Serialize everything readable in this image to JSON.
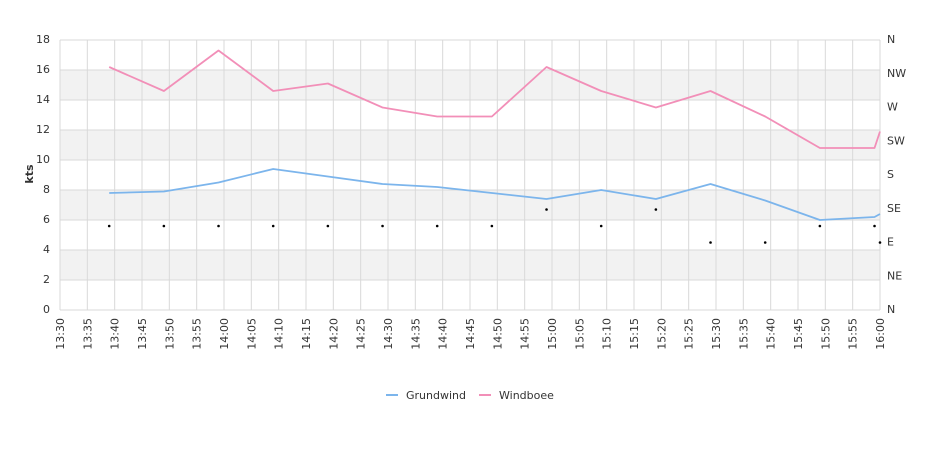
{
  "colors": {
    "grundwind": "#7cb5ec",
    "windboee": "#f28fb8",
    "band": "#f2f2f2",
    "grid": "#d9d9d9",
    "direction_marker": "#000000"
  },
  "chart_data": {
    "type": "line",
    "ylabel": "kts",
    "ylim": [
      0,
      18
    ],
    "y_ticks": [
      "0",
      "2",
      "4",
      "6",
      "8",
      "10",
      "12",
      "14",
      "16",
      "18"
    ],
    "x_tick_labels": [
      "13:30",
      "13:35",
      "13:40",
      "13:45",
      "13:50",
      "13:55",
      "14:00",
      "14:05",
      "14:10",
      "14:15",
      "14:20",
      "14:25",
      "14:30",
      "14:35",
      "14:40",
      "14:45",
      "14:50",
      "14:55",
      "15:00",
      "15:05",
      "15:10",
      "15:15",
      "15:20",
      "15:25",
      "15:30",
      "15:35",
      "15:40",
      "15:45",
      "15:50",
      "15:55",
      "16:00"
    ],
    "right_axis_labels": [
      "N",
      "NE",
      "E",
      "SE",
      "S",
      "SW",
      "W",
      "NW",
      "N"
    ],
    "series": [
      {
        "name": "Grundwind",
        "color": "#7cb5ec",
        "points": [
          [
            "13:39",
            7.8
          ],
          [
            "13:49",
            7.9
          ],
          [
            "13:59",
            8.5
          ],
          [
            "14:09",
            9.4
          ],
          [
            "14:19",
            8.9
          ],
          [
            "14:29",
            8.4
          ],
          [
            "14:39",
            8.2
          ],
          [
            "14:49",
            7.8
          ],
          [
            "14:59",
            7.4
          ],
          [
            "15:09",
            8.0
          ],
          [
            "15:19",
            7.4
          ],
          [
            "15:29",
            8.4
          ],
          [
            "15:39",
            7.3
          ],
          [
            "15:49",
            6.0
          ],
          [
            "15:59",
            6.2
          ],
          [
            "16:00",
            6.4
          ]
        ]
      },
      {
        "name": "Windboee",
        "color": "#f28fb8",
        "points": [
          [
            "13:39",
            16.2
          ],
          [
            "13:49",
            14.6
          ],
          [
            "13:59",
            17.3
          ],
          [
            "14:09",
            14.6
          ],
          [
            "14:19",
            15.1
          ],
          [
            "14:29",
            13.5
          ],
          [
            "14:39",
            12.9
          ],
          [
            "14:49",
            12.9
          ],
          [
            "14:59",
            16.2
          ],
          [
            "15:09",
            14.6
          ],
          [
            "15:19",
            13.5
          ],
          [
            "15:29",
            14.6
          ],
          [
            "15:39",
            12.9
          ],
          [
            "15:49",
            10.8
          ],
          [
            "15:59",
            10.8
          ],
          [
            "16:00",
            11.9
          ]
        ]
      }
    ],
    "direction_markers": [
      [
        "13:39",
        5.6
      ],
      [
        "13:49",
        5.6
      ],
      [
        "13:59",
        5.6
      ],
      [
        "14:09",
        5.6
      ],
      [
        "14:19",
        5.6
      ],
      [
        "14:29",
        5.6
      ],
      [
        "14:39",
        5.6
      ],
      [
        "14:49",
        5.6
      ],
      [
        "14:59",
        6.7
      ],
      [
        "15:09",
        5.6
      ],
      [
        "15:19",
        6.7
      ],
      [
        "15:29",
        4.5
      ],
      [
        "15:39",
        4.5
      ],
      [
        "15:49",
        5.6
      ],
      [
        "15:59",
        5.6
      ],
      [
        "16:00",
        4.5
      ]
    ],
    "grid": true,
    "legend_placement": "bottom-center"
  }
}
